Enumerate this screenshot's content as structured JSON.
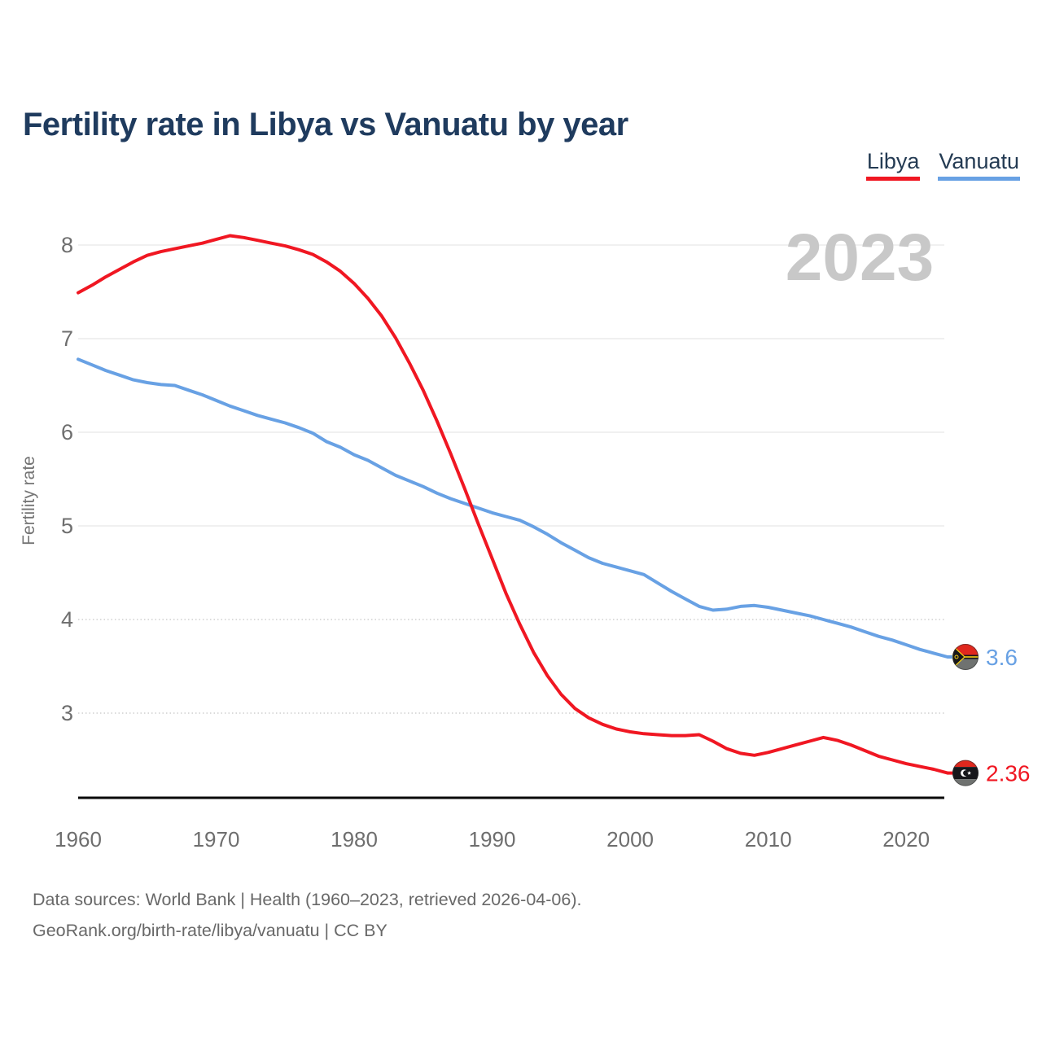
{
  "page": {
    "title": "Fertility rate in Libya vs Vanuatu by year",
    "watermark": "2023",
    "footer_line1": "Data sources: World Bank | Health (1960–2023, retrieved 2026-04-06).",
    "footer_line2": "GeoRank.org/birth-rate/libya/vanuatu | CC BY"
  },
  "colors": {
    "title_text": "#1f3b5e",
    "libya_red": "#f01722",
    "vanuatu_blue": "#68a1e4",
    "watermark_gray": "#c8c8c8",
    "tick_gray": "#6e6e6e",
    "axis_title_gray": "#757575",
    "footer_gray": "#686868",
    "grid_solid": "#e6e6e6",
    "grid_dotted": "#cfcfcf",
    "axis_line": "#0a0a0a",
    "flag_red": "#e0281e",
    "flag_black": "#17171b",
    "flag_greengray": "#6f7270",
    "flag_yellow": "#f4cf14"
  },
  "chart_data": {
    "type": "line",
    "title": "Fertility rate in Libya vs Vanuatu by year",
    "xlabel": "",
    "ylabel": "Fertility rate",
    "grid": "horizontal",
    "legend_position": "top-right",
    "watermark": "2023",
    "xlim": [
      1960,
      2023
    ],
    "ylim": [
      2.1,
      8.55
    ],
    "xticks": [
      1960,
      1970,
      1980,
      1990,
      2000,
      2010,
      2020
    ],
    "yticks": [
      3,
      4,
      5,
      6,
      7,
      8
    ],
    "dotted_yticks": [
      3,
      4
    ],
    "x": [
      1960,
      1961,
      1962,
      1963,
      1964,
      1965,
      1966,
      1967,
      1968,
      1969,
      1970,
      1971,
      1972,
      1973,
      1974,
      1975,
      1976,
      1977,
      1978,
      1979,
      1980,
      1981,
      1982,
      1983,
      1984,
      1985,
      1986,
      1987,
      1988,
      1989,
      1990,
      1991,
      1992,
      1993,
      1994,
      1995,
      1996,
      1997,
      1998,
      1999,
      2000,
      2001,
      2002,
      2003,
      2004,
      2005,
      2006,
      2007,
      2008,
      2009,
      2010,
      2011,
      2012,
      2013,
      2014,
      2015,
      2016,
      2017,
      2018,
      2019,
      2020,
      2021,
      2022,
      2023
    ],
    "series": [
      {
        "name": "Libya",
        "color": "#f01722",
        "end_label": "2.36",
        "flag": "libya",
        "values": [
          7.49,
          7.57,
          7.66,
          7.74,
          7.82,
          7.89,
          7.93,
          7.96,
          7.99,
          8.02,
          8.06,
          8.1,
          8.08,
          8.05,
          8.02,
          7.99,
          7.95,
          7.9,
          7.82,
          7.72,
          7.59,
          7.43,
          7.24,
          7.01,
          6.74,
          6.45,
          6.12,
          5.77,
          5.4,
          5.02,
          4.65,
          4.28,
          3.95,
          3.65,
          3.4,
          3.2,
          3.05,
          2.95,
          2.88,
          2.83,
          2.8,
          2.78,
          2.77,
          2.76,
          2.76,
          2.77,
          2.7,
          2.62,
          2.57,
          2.55,
          2.58,
          2.62,
          2.66,
          2.7,
          2.74,
          2.71,
          2.66,
          2.6,
          2.54,
          2.5,
          2.46,
          2.43,
          2.4,
          2.36
        ]
      },
      {
        "name": "Vanuatu",
        "color": "#68a1e4",
        "end_label": "3.6",
        "flag": "vanuatu",
        "values": [
          6.78,
          6.72,
          6.66,
          6.61,
          6.56,
          6.53,
          6.51,
          6.5,
          6.45,
          6.4,
          6.34,
          6.28,
          6.23,
          6.18,
          6.14,
          6.1,
          6.05,
          5.99,
          5.9,
          5.84,
          5.76,
          5.7,
          5.62,
          5.54,
          5.48,
          5.42,
          5.35,
          5.29,
          5.24,
          5.19,
          5.14,
          5.1,
          5.06,
          4.99,
          4.91,
          4.82,
          4.74,
          4.66,
          4.6,
          4.56,
          4.52,
          4.48,
          4.39,
          4.3,
          4.22,
          4.14,
          4.1,
          4.11,
          4.14,
          4.15,
          4.13,
          4.1,
          4.07,
          4.04,
          4.0,
          3.96,
          3.92,
          3.87,
          3.82,
          3.78,
          3.73,
          3.68,
          3.64,
          3.6
        ]
      }
    ]
  }
}
